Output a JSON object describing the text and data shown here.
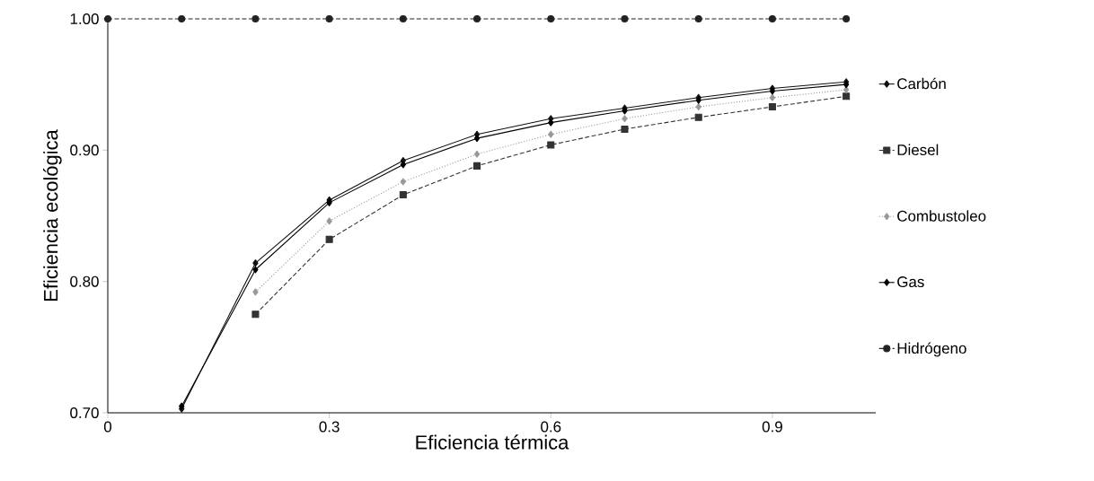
{
  "chart_data": {
    "type": "line",
    "xlabel": "Eficiencia térmica",
    "ylabel": "Eficiencia  ecológica",
    "x": [
      0,
      0.1,
      0.2,
      0.3,
      0.4,
      0.5,
      0.6,
      0.7,
      0.8,
      0.9,
      1.0
    ],
    "series": [
      {
        "name": "Carbón",
        "color": "#111111",
        "marker": "diamond",
        "line_style": "solid",
        "values": [
          null,
          0.703,
          0.814,
          0.862,
          0.892,
          0.912,
          0.924,
          0.932,
          0.94,
          0.947,
          0.952
        ]
      },
      {
        "name": "Diesel",
        "color": "#333333",
        "marker": "square",
        "line_style": "dashed",
        "values": [
          null,
          null,
          0.775,
          0.832,
          0.866,
          0.888,
          0.904,
          0.916,
          0.925,
          0.933,
          0.941
        ]
      },
      {
        "name": "Combustoleo",
        "color": "#999999",
        "marker": "diamond",
        "line_style": "dotted",
        "values": [
          null,
          null,
          0.792,
          0.846,
          0.876,
          0.897,
          0.912,
          0.924,
          0.933,
          0.94,
          0.946
        ]
      },
      {
        "name": "Gas",
        "color": "#000000",
        "marker": "diamond",
        "line_style": "solid",
        "values": [
          null,
          0.705,
          0.809,
          0.86,
          0.889,
          0.909,
          0.921,
          0.93,
          0.938,
          0.945,
          0.95
        ]
      },
      {
        "name": "Hidrógeno",
        "color": "#222222",
        "marker": "circle",
        "line_style": "dashed",
        "values": [
          1.0,
          1.0,
          1.0,
          1.0,
          1.0,
          1.0,
          1.0,
          1.0,
          1.0,
          1.0,
          1.0
        ]
      }
    ],
    "xlim": [
      0,
      1.04
    ],
    "ylim": [
      0.7,
      1.0
    ],
    "xticks": [
      0,
      0.3,
      0.6,
      0.9
    ],
    "yticks": [
      {
        "value": 0.7,
        "label": "0.70"
      },
      {
        "value": 0.8,
        "label": "0.80"
      },
      {
        "value": 0.9,
        "label": "0.90"
      },
      {
        "value": 1.0,
        "label": "1.00"
      }
    ],
    "grid": false,
    "legend": "right"
  }
}
